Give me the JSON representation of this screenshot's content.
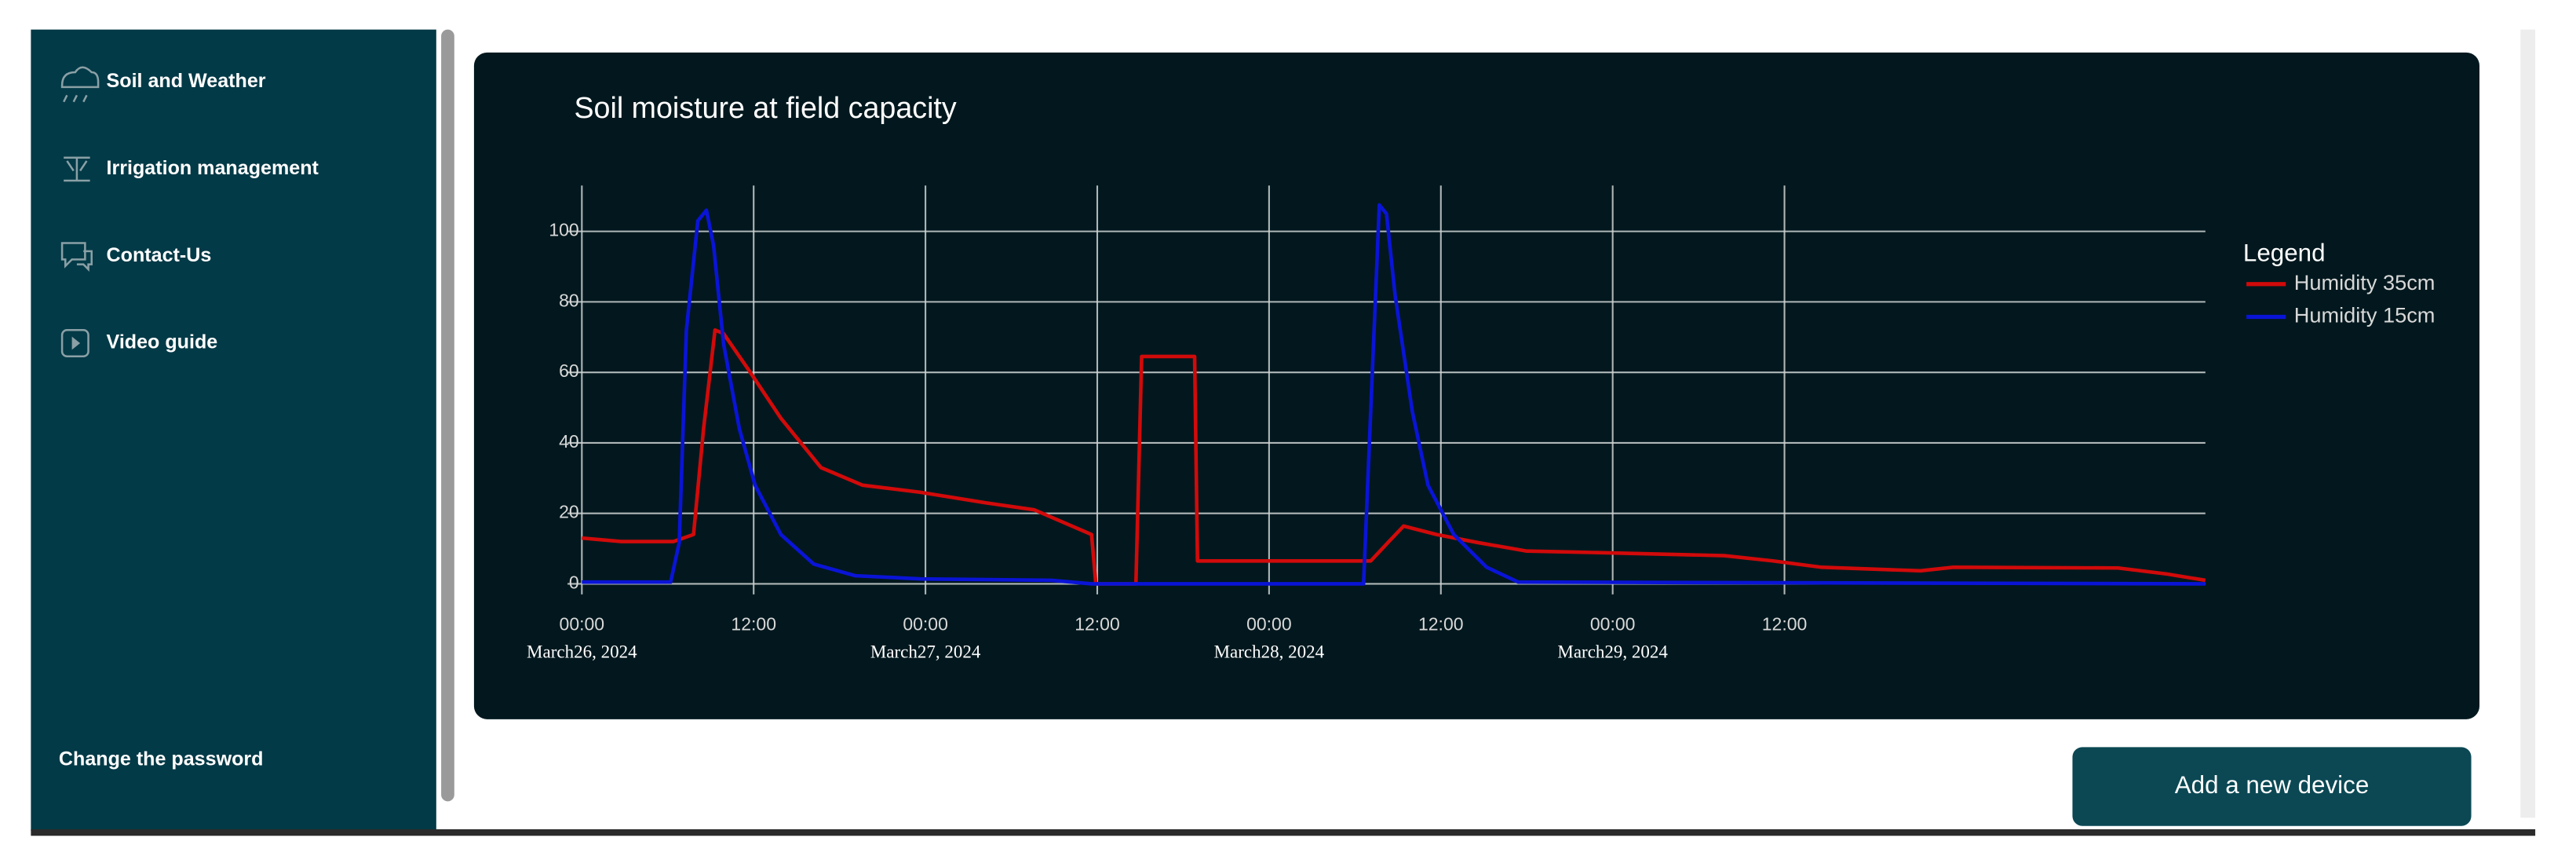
{
  "sidebar": {
    "items": [
      "Soil and Weather",
      "Irrigation management",
      "Contact-Us",
      "Video guide"
    ],
    "footer": "Change the password"
  },
  "button": "Add a new device",
  "chart_data": {
    "type": "line",
    "title": "Soil moisture at field capacity",
    "legend_title": "Legend",
    "legend_position": "right",
    "grid": true,
    "xlim": [
      "2024-03-25T23:00",
      "2024-03-30T17:24"
    ],
    "xticks": [
      {
        "value": "2024-03-26T00:00",
        "label": "00:00",
        "sublabel": "March26, 2024"
      },
      {
        "value": "2024-03-26T12:00",
        "label": "12:00"
      },
      {
        "value": "2024-03-27T00:00",
        "label": "00:00",
        "sublabel": "March27, 2024"
      },
      {
        "value": "2024-03-27T12:00",
        "label": "12:00"
      },
      {
        "value": "2024-03-28T00:00",
        "label": "00:00",
        "sublabel": "March28, 2024"
      },
      {
        "value": "2024-03-28T12:00",
        "label": "12:00"
      },
      {
        "value": "2024-03-29T00:00",
        "label": "00:00",
        "sublabel": "March29, 2024"
      },
      {
        "value": "2024-03-29T12:00",
        "label": "12:00"
      }
    ],
    "ylim": [
      -3,
      113
    ],
    "yticks": [
      0,
      20,
      40,
      60,
      80,
      100
    ],
    "series": [
      {
        "name": "Humidity 35cm",
        "color": "#d10a0a",
        "x": [
          "2024-03-26T00:00",
          "2024-03-26T02:45",
          "2024-03-26T06:24",
          "2024-03-26T07:48",
          "2024-03-26T08:30",
          "2024-03-26T09:18",
          "2024-03-26T09:54",
          "2024-03-26T11:36",
          "2024-03-26T13:54",
          "2024-03-26T16:42",
          "2024-03-26T19:36",
          "2024-03-26T23:36",
          "2024-03-27T04:12",
          "2024-03-27T07:36",
          "2024-03-27T11:36",
          "2024-03-27T11:54",
          "2024-03-27T14:42",
          "2024-03-27T15:06",
          "2024-03-27T18:48",
          "2024-03-27T19:00",
          "2024-03-28T07:06",
          "2024-03-28T08:18",
          "2024-03-28T09:24",
          "2024-03-28T11:42",
          "2024-03-28T14:36",
          "2024-03-28T18:00",
          "2024-03-28T21:30",
          "2024-03-29T07:48",
          "2024-03-29T11:12",
          "2024-03-29T14:36",
          "2024-03-29T21:30",
          "2024-03-29T23:48",
          "2024-03-30T11:18",
          "2024-03-30T14:42",
          "2024-03-30T17:24"
        ],
        "values": [
          13,
          12,
          12,
          14,
          44,
          72,
          71,
          61,
          47,
          33,
          28,
          26,
          23,
          21,
          14,
          0,
          0,
          64.5,
          64.5,
          6.5,
          6.5,
          11.7,
          16.4,
          14,
          11.7,
          9.3,
          9,
          8,
          6.5,
          4.7,
          3.7,
          4.7,
          4.5,
          2.8,
          1
        ]
      },
      {
        "name": "Humidity 15cm",
        "color": "#0a14d6",
        "x": [
          "2024-03-26T00:00",
          "2024-03-26T06:12",
          "2024-03-26T06:48",
          "2024-03-26T07:18",
          "2024-03-26T08:06",
          "2024-03-26T08:42",
          "2024-03-26T09:12",
          "2024-03-26T09:54",
          "2024-03-26T11:00",
          "2024-03-26T12:06",
          "2024-03-26T13:54",
          "2024-03-26T16:12",
          "2024-03-26T19:06",
          "2024-03-26T23:42",
          "2024-03-27T08:48",
          "2024-03-27T11:36",
          "2024-03-28T06:36",
          "2024-03-28T07:06",
          "2024-03-28T07:42",
          "2024-03-28T08:12",
          "2024-03-28T08:48",
          "2024-03-28T10:00",
          "2024-03-28T11:06",
          "2024-03-28T12:54",
          "2024-03-28T15:12",
          "2024-03-28T17:24",
          "2024-03-30T17:24"
        ],
        "values": [
          0.5,
          0.5,
          11.7,
          72,
          103,
          106,
          96,
          68,
          44,
          28,
          14,
          5.6,
          2.3,
          1.4,
          1,
          0,
          0,
          49,
          107.5,
          105,
          82,
          49,
          28,
          14,
          4.7,
          0.5,
          0
        ]
      }
    ]
  }
}
